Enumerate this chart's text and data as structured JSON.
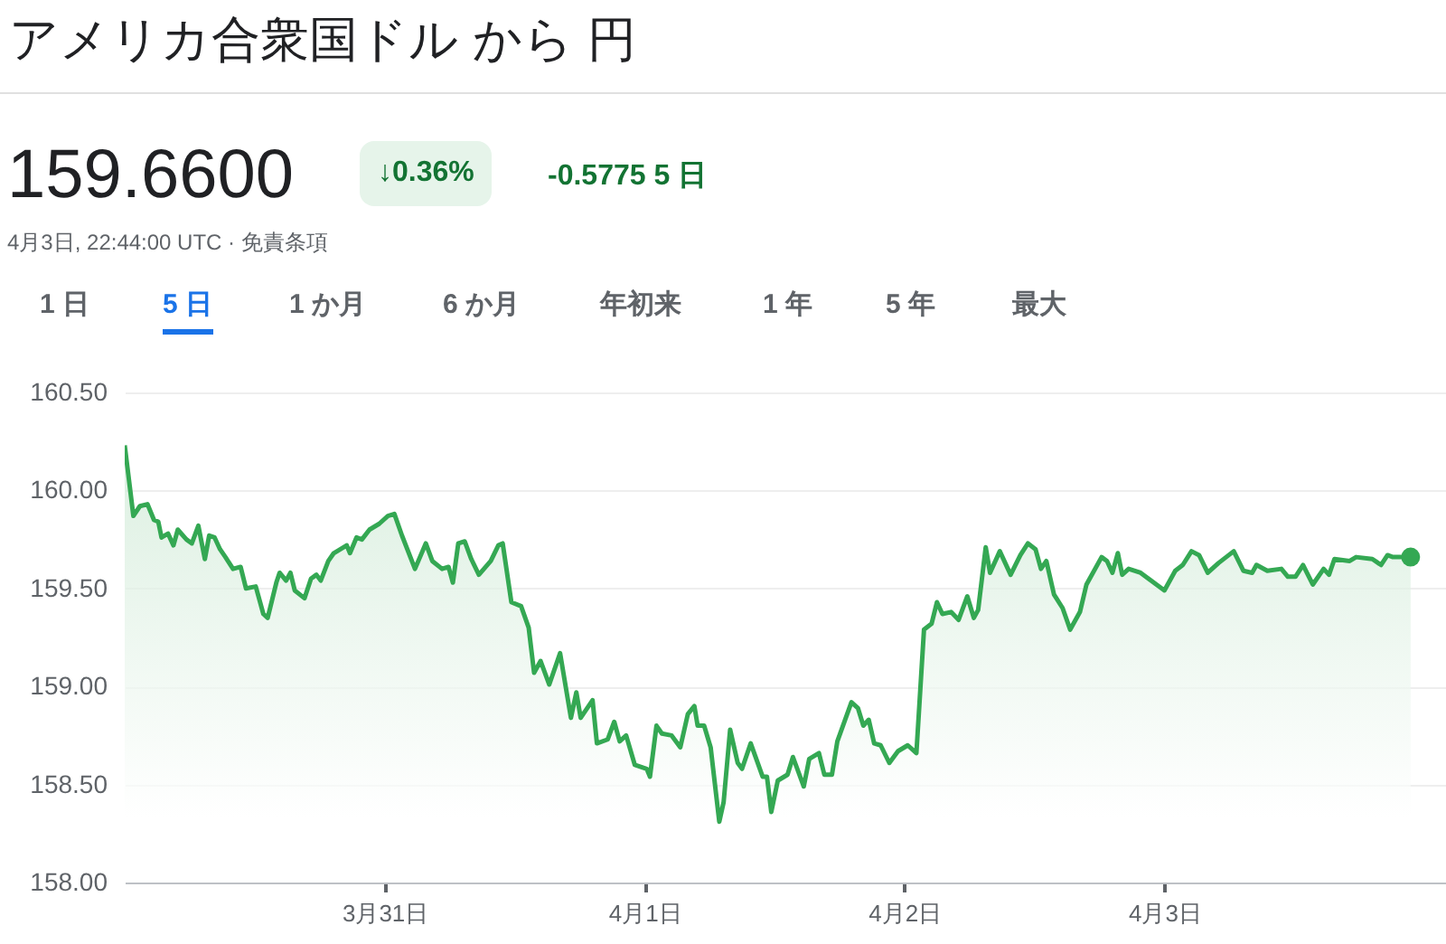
{
  "chart_data": {
    "type": "area",
    "title": "アメリカ合衆国ドル から 円",
    "annotations": [
      "159.6600",
      "↓0.36%",
      "-0.5775 5 日",
      "4月3日, 22:44:00 UTC · 免責条項",
      "1 日",
      "5 日",
      "1 か月",
      "6 か月",
      "年初来",
      "1 年",
      "5 年",
      "最大"
    ],
    "x": [
      "--03-30T00:00",
      "--03-30T00:48",
      "--03-30T01:24",
      "--03-30T02:06",
      "--03-30T02:42",
      "--03-30T03:06",
      "--03-30T03:24",
      "--03-30T04:00",
      "--03-30T04:30",
      "--03-30T04:54",
      "--03-30T05:42",
      "--03-30T06:12",
      "--03-30T06:48",
      "--03-30T07:24",
      "--03-30T07:48",
      "--03-30T08:18",
      "--03-30T08:48",
      "--03-30T09:18",
      "--03-30T10:00",
      "--03-30T10:42",
      "--03-30T11:12",
      "--03-30T12:06",
      "--03-30T12:48",
      "--03-30T13:12",
      "--03-30T14:00",
      "--03-30T14:18",
      "--03-30T14:54",
      "--03-30T15:18",
      "--03-30T15:42",
      "--03-30T16:36",
      "--03-30T17:12",
      "--03-30T17:42",
      "--03-30T18:06",
      "--03-30T18:48",
      "--03-30T19:18",
      "--03-30T20:30",
      "--03-30T20:48",
      "--03-30T21:24",
      "--03-30T21:54",
      "--03-30T22:36",
      "--03-30T23:30",
      "--03-31T00:18",
      "--03-31T00:54",
      "--03-31T01:36",
      "--03-31T02:48",
      "--03-31T03:48",
      "--03-31T04:24",
      "--03-31T05:18",
      "--03-31T05:54",
      "--03-31T06:18",
      "--03-31T06:48",
      "--03-31T07:24",
      "--03-31T08:00",
      "--03-31T08:42",
      "--03-31T09:48",
      "--03-31T10:30",
      "--03-31T10:54",
      "--03-31T11:42",
      "--03-31T12:36",
      "--03-31T13:18",
      "--03-31T13:48",
      "--03-31T14:24",
      "--03-31T15:12",
      "--03-31T16:12",
      "--03-31T17:12",
      "--03-31T17:42",
      "--03-31T18:06",
      "--03-31T19:12",
      "--03-31T19:36",
      "--03-31T20:36",
      "--03-31T21:12",
      "--03-31T21:42",
      "--03-31T22:18",
      "--03-31T23:06",
      "--04-01T00:12",
      "--04-01T00:30",
      "--04-01T01:06",
      "--04-01T01:36",
      "--04-01T02:30",
      "--04-01T03:18",
      "--04-01T04:00",
      "--04-01T04:36",
      "--04-01T04:54",
      "--04-01T05:30",
      "--04-01T06:06",
      "--04-01T06:54",
      "--04-01T07:18",
      "--04-01T07:54",
      "--04-01T08:36",
      "--04-01T09:00",
      "--04-01T09:48",
      "--04-01T10:54",
      "--04-01T11:18",
      "--04-01T11:42",
      "--04-01T12:18",
      "--04-01T13:12",
      "--04-01T13:42",
      "--04-01T14:42",
      "--04-01T15:12",
      "--04-01T16:06",
      "--04-01T16:36",
      "--04-01T17:18",
      "--04-01T17:48",
      "--04-01T19:06",
      "--04-01T19:42",
      "--04-01T20:12",
      "--04-01T20:42",
      "--04-01T21:12",
      "--04-01T21:48",
      "--04-01T22:36",
      "--04-01T23:24",
      "--04-02T00:18",
      "--04-02T01:06",
      "--04-02T01:48",
      "--04-02T02:30",
      "--04-02T03:00",
      "--04-02T03:30",
      "--04-02T04:18",
      "--04-02T05:00",
      "--04-02T05:48",
      "--04-02T06:24",
      "--04-02T06:48",
      "--04-02T07:30",
      "--04-02T07:54",
      "--04-02T08:48",
      "--04-02T09:48",
      "--04-02T10:42",
      "--04-02T11:24",
      "--04-02T12:06",
      "--04-02T12:36",
      "--04-02T13:06",
      "--04-02T13:48",
      "--04-02T14:36",
      "--04-02T15:18",
      "--04-02T16:12",
      "--04-02T16:48",
      "--04-02T18:12",
      "--04-02T18:42",
      "--04-02T19:12",
      "--04-02T19:42",
      "--04-02T20:06",
      "--04-02T20:42",
      "--04-02T21:48",
      "--04-03T00:00",
      "--04-03T01:00",
      "--04-03T01:42",
      "--04-03T02:30",
      "--04-03T03:12",
      "--04-03T04:00",
      "--04-03T05:00",
      "--04-03T06:24",
      "--04-03T07:18",
      "--04-03T08:06",
      "--04-03T08:30",
      "--04-03T09:30",
      "--04-03T10:48",
      "--04-03T11:24",
      "--04-03T12:06",
      "--04-03T12:48",
      "--04-03T13:42",
      "--04-03T14:42",
      "--04-03T15:12",
      "--04-03T15:42",
      "--04-03T17:06",
      "--04-03T17:42",
      "--04-03T19:12",
      "--04-03T20:00",
      "--04-03T20:36",
      "--04-03T21:06",
      "--04-03T22:44"
    ],
    "series": [
      {
        "color": "#34a853",
        "values": [
          160.23,
          159.87,
          159.92,
          159.93,
          159.85,
          159.84,
          159.76,
          159.78,
          159.72,
          159.8,
          159.75,
          159.73,
          159.82,
          159.65,
          159.77,
          159.76,
          159.7,
          159.66,
          159.6,
          159.61,
          159.5,
          159.51,
          159.37,
          159.35,
          159.53,
          159.58,
          159.54,
          159.58,
          159.49,
          159.45,
          159.55,
          159.57,
          159.54,
          159.64,
          159.68,
          159.72,
          159.68,
          159.76,
          159.75,
          159.8,
          159.83,
          159.87,
          159.88,
          159.77,
          159.6,
          159.73,
          159.64,
          159.6,
          159.61,
          159.53,
          159.73,
          159.74,
          159.65,
          159.57,
          159.64,
          159.72,
          159.73,
          159.43,
          159.41,
          159.3,
          159.07,
          159.13,
          159.01,
          159.17,
          158.84,
          158.97,
          158.84,
          158.93,
          158.71,
          158.73,
          158.82,
          158.72,
          158.75,
          158.6,
          158.58,
          158.54,
          158.8,
          158.76,
          158.75,
          158.69,
          158.86,
          158.9,
          158.8,
          158.8,
          158.69,
          158.31,
          158.41,
          158.78,
          158.61,
          158.58,
          158.71,
          158.54,
          158.54,
          158.36,
          158.52,
          158.55,
          158.64,
          158.49,
          158.63,
          158.66,
          158.55,
          158.55,
          158.72,
          158.92,
          158.89,
          158.8,
          158.83,
          158.71,
          158.7,
          158.61,
          158.67,
          158.7,
          158.66,
          159.29,
          159.32,
          159.43,
          159.37,
          159.38,
          159.34,
          159.46,
          159.35,
          159.39,
          159.71,
          159.58,
          159.69,
          159.57,
          159.67,
          159.73,
          159.7,
          159.6,
          159.64,
          159.47,
          159.4,
          159.29,
          159.38,
          159.52,
          159.66,
          159.64,
          159.58,
          159.68,
          159.57,
          159.6,
          159.58,
          159.49,
          159.59,
          159.62,
          159.69,
          159.67,
          159.58,
          159.63,
          159.69,
          159.59,
          159.58,
          159.62,
          159.59,
          159.6,
          159.56,
          159.56,
          159.62,
          159.52,
          159.6,
          159.57,
          159.65,
          159.64,
          159.66,
          159.65,
          159.62,
          159.67,
          159.66,
          159.66
        ]
      }
    ],
    "xlim": [
      "--03-30T00:00",
      "--04-04T02:00"
    ],
    "xticks": [
      {
        "value": "--03-31",
        "label": "3月31日"
      },
      {
        "value": "--04-01",
        "label": "4月1日"
      },
      {
        "value": "--04-02",
        "label": "4月2日"
      },
      {
        "value": "--04-03",
        "label": "4月3日"
      }
    ],
    "ylim": [
      158,
      160.5
    ],
    "yticks": [
      {
        "value": 158,
        "label": "158.00"
      },
      {
        "value": 158.5,
        "label": "158.50"
      },
      {
        "value": 159,
        "label": "159.00"
      },
      {
        "value": 159.5,
        "label": "159.50"
      },
      {
        "value": 160,
        "label": "160.00"
      },
      {
        "value": 160.5,
        "label": "160.50"
      }
    ],
    "grid": "y"
  }
}
